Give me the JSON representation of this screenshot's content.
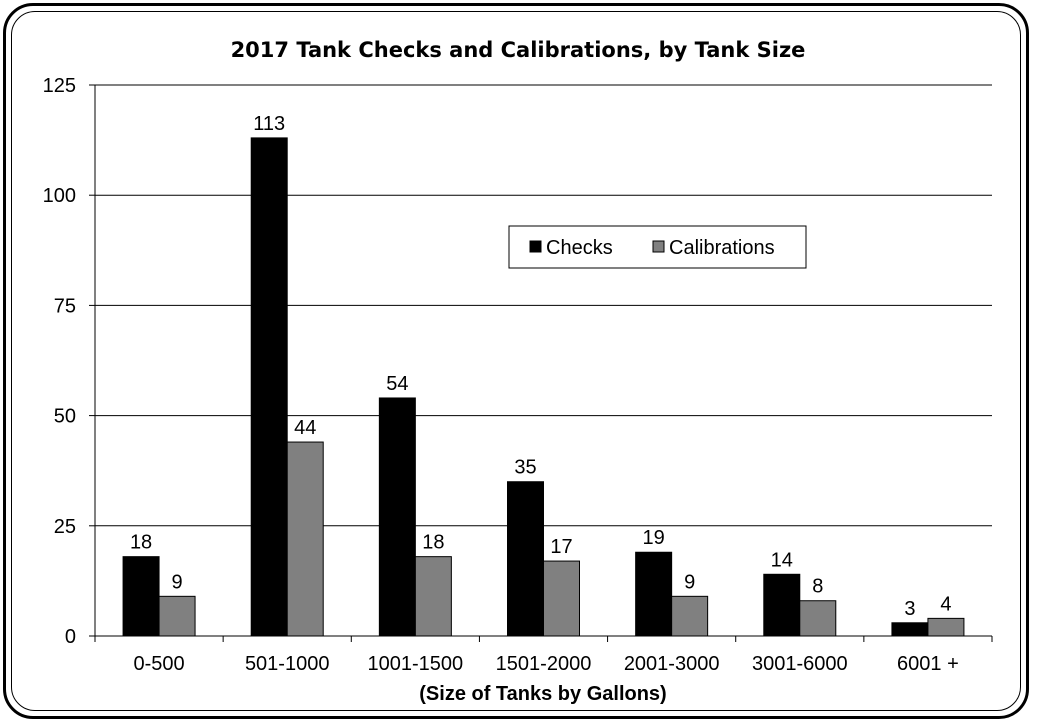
{
  "chart_data": {
    "type": "bar",
    "title": "2017 Tank Checks and Calibrations, by Tank Size",
    "xlabel": "(Size of Tanks by Gallons)",
    "ylabel": "",
    "ylim": [
      0,
      125
    ],
    "yticks": [
      0,
      25,
      50,
      75,
      100,
      125
    ],
    "grid": true,
    "legend_position": "center-right",
    "categories": [
      "0-500",
      "501-1000",
      "1001-1500",
      "1501-2000",
      "2001-3000",
      "3001-6000",
      "6001 +"
    ],
    "series": [
      {
        "name": "Checks",
        "color": "#000000",
        "values": [
          18,
          113,
          54,
          35,
          19,
          14,
          3
        ]
      },
      {
        "name": "Calibrations",
        "color": "#808080",
        "values": [
          9,
          44,
          18,
          17,
          9,
          8,
          4
        ]
      }
    ]
  }
}
